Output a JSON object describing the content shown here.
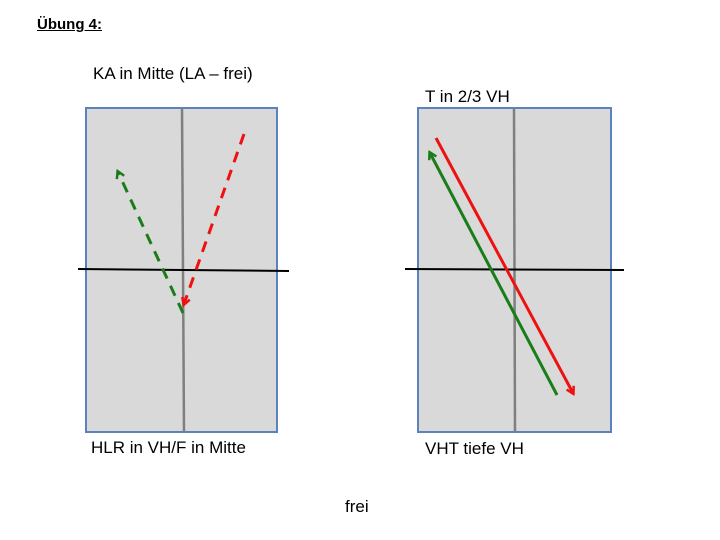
{
  "heading": "Übung 4:",
  "left_panel": {
    "top_label": "KA in Mitte (LA – frei)",
    "bottom_label": "HLR in VH/F in Mitte"
  },
  "right_panel": {
    "top_label": "T in 2/3 VH",
    "bottom_label": "VHT tiefe VH"
  },
  "footer": "frei",
  "colors": {
    "field_fill": "#d9d9d9",
    "field_border": "#5b82bd",
    "center_line": "#7f7f7f",
    "net_line": "#000000",
    "green_arrow": "#1a7d1a",
    "red_arrow": "#ee1111"
  }
}
